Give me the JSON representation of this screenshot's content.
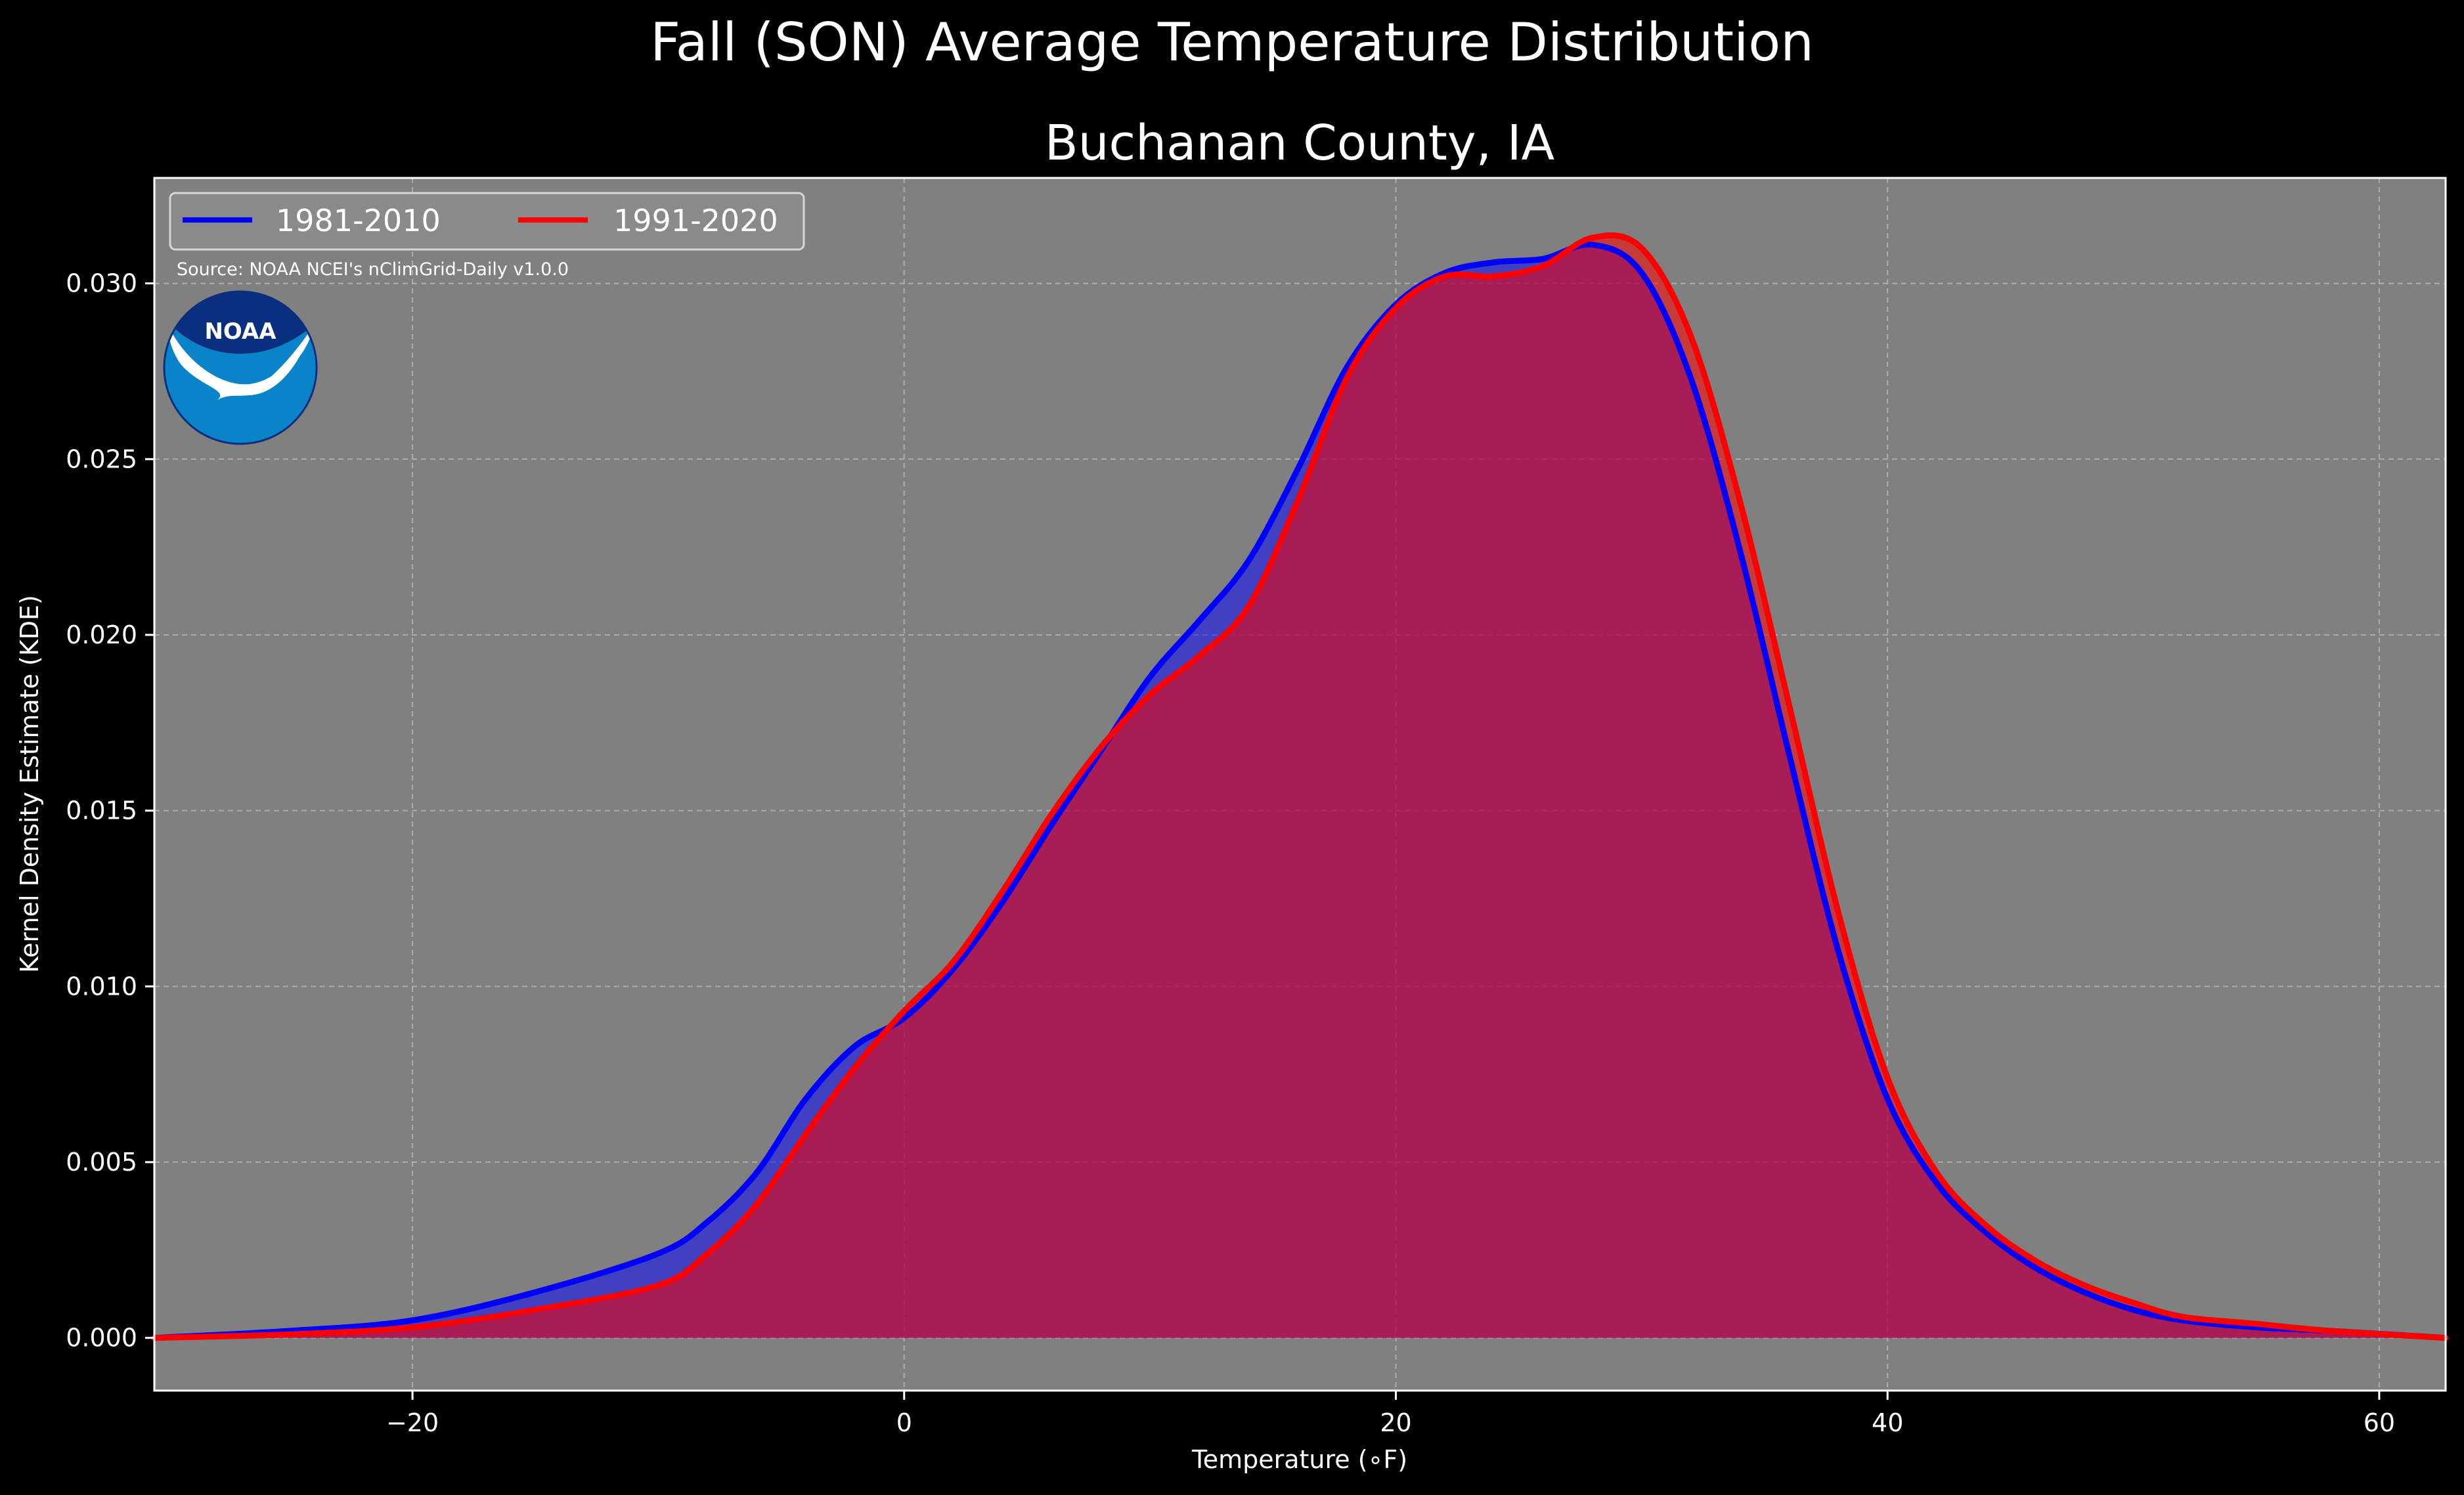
{
  "title": "Fall (SON) Average Temperature Distribution",
  "subtitle": "Buchanan County, IA",
  "source_note": "Source: NOAA NCEI's nClimGrid-Daily v1.0.0",
  "logo_text": "NOAA",
  "colors": {
    "background": "#000000",
    "plot_background": "#808080",
    "series_1": "#0000ff",
    "series_2": "#ff0000",
    "overlap_fill": "#9b1e5c"
  },
  "chart_data": {
    "type": "area",
    "title": "Buchanan County, IA",
    "xlabel": "Temperature (∘F)",
    "ylabel": "Kernel Density Estimate (KDE)",
    "xlim": [
      -30.5,
      62.7
    ],
    "ylim": [
      -0.0015,
      0.033
    ],
    "x_ticks": [
      -20,
      0,
      20,
      40,
      60
    ],
    "x_tick_labels": [
      "−20",
      "0",
      "20",
      "40",
      "60"
    ],
    "y_ticks": [
      0.0,
      0.005,
      0.01,
      0.015,
      0.02,
      0.025,
      0.03
    ],
    "y_tick_labels": [
      "0.000",
      "0.005",
      "0.010",
      "0.015",
      "0.020",
      "0.025",
      "0.030"
    ],
    "grid": true,
    "legend_position": "top-left",
    "series": [
      {
        "name": "1981-2010",
        "color": "#0000ff",
        "x": [
          -30.5,
          -25,
          -20,
          -15,
          -10,
          -8,
          -6,
          -4,
          -2,
          0,
          2,
          4,
          6,
          8,
          10,
          12,
          14,
          16,
          18,
          20,
          22,
          24,
          26,
          28,
          30,
          32,
          34,
          36,
          38,
          40,
          42,
          44,
          46,
          48,
          50,
          52,
          55,
          58,
          62.7
        ],
        "y": [
          0.0,
          0.0002,
          0.0005,
          0.0013,
          0.0024,
          0.0033,
          0.0047,
          0.0068,
          0.0083,
          0.0091,
          0.0105,
          0.0124,
          0.0146,
          0.0167,
          0.0188,
          0.0204,
          0.0221,
          0.0247,
          0.0276,
          0.0294,
          0.0303,
          0.0306,
          0.0307,
          0.0311,
          0.0303,
          0.0273,
          0.0224,
          0.0166,
          0.011,
          0.0068,
          0.0044,
          0.003,
          0.002,
          0.0013,
          0.0008,
          0.0005,
          0.0003,
          0.0002,
          0.0
        ]
      },
      {
        "name": "1991-2020",
        "color": "#ff0000",
        "x": [
          -30.5,
          -25,
          -20,
          -15,
          -10,
          -8,
          -6,
          -4,
          -2,
          0,
          2,
          4,
          6,
          8,
          10,
          12,
          14,
          16,
          18,
          20,
          22,
          24,
          26,
          28,
          30,
          32,
          34,
          36,
          38,
          40,
          42,
          44,
          46,
          48,
          50,
          52,
          55,
          58,
          62.7
        ],
        "y": [
          0.0,
          0.0001,
          0.0003,
          0.0008,
          0.0015,
          0.0024,
          0.0038,
          0.0058,
          0.0077,
          0.0093,
          0.0107,
          0.0127,
          0.0149,
          0.0168,
          0.0183,
          0.0194,
          0.0208,
          0.0238,
          0.0273,
          0.0293,
          0.0302,
          0.0302,
          0.0305,
          0.0313,
          0.031,
          0.0285,
          0.0238,
          0.018,
          0.0121,
          0.0074,
          0.0047,
          0.0032,
          0.0022,
          0.0015,
          0.001,
          0.0006,
          0.0004,
          0.0002,
          0.0
        ]
      }
    ]
  }
}
